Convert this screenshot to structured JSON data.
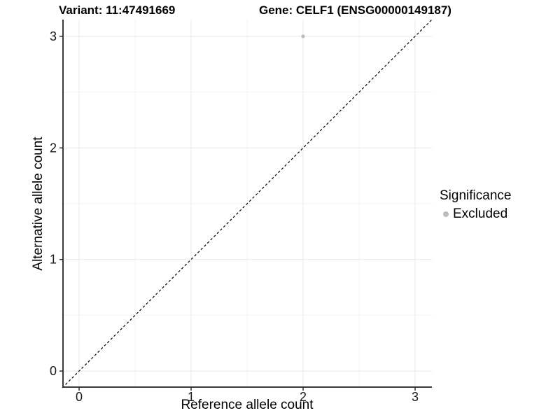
{
  "chart_data": {
    "type": "scatter",
    "title_left": "Variant: 11:47491669",
    "title_right": "Gene: CELF1 (ENSG00000149187)",
    "xlabel": "Reference allele count",
    "ylabel": "Alternative allele count",
    "xlim": [
      -0.15,
      3.15
    ],
    "ylim": [
      -0.15,
      3.15
    ],
    "xticks": [
      0,
      1,
      2,
      3
    ],
    "yticks": [
      0,
      1,
      2,
      3
    ],
    "xminor": [
      0.5,
      1.5,
      2.5
    ],
    "yminor": [
      0.5,
      1.5,
      2.5
    ],
    "grid": "major+minor",
    "points": [
      {
        "x": 2,
        "y": 3,
        "series": "Excluded",
        "color": "#bcbcbc"
      }
    ],
    "reference_line": {
      "type": "identity",
      "style": "dashed",
      "color": "#000000"
    },
    "legend": {
      "title": "Significance",
      "position": "right",
      "items": [
        {
          "label": "Excluded",
          "color": "#bcbcbc"
        }
      ]
    },
    "colors": {
      "axis_line": "#3a3a3a",
      "tick_mark": "#333333",
      "tick_label": "#1a1a1a",
      "grid_major": "#e8e8e8",
      "grid_minor": "#f3f3f3",
      "background": "#ffffff"
    }
  }
}
